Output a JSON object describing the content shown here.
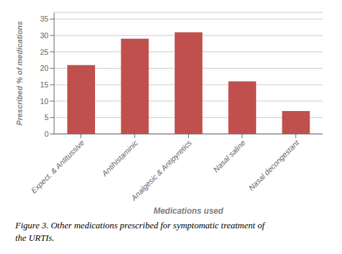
{
  "chart_data": {
    "type": "bar",
    "categories": [
      "Expect. & Antitussive",
      "Antihistaminic",
      "Analgesic & Antipyretics",
      "Nasal saline",
      "Nasal decongestant"
    ],
    "values": [
      21,
      29,
      31,
      16,
      7
    ],
    "color": "#c0504d",
    "xlabel": "Medications used",
    "ylabel": "Prescribed % of medications",
    "ylim": [
      0,
      37
    ],
    "yticks": [
      0,
      5,
      10,
      15,
      20,
      25,
      30,
      35
    ],
    "grid": true,
    "annotations": [
      "Figure 3. Other medications prescribed for symptomatic treatment of",
      "the URTIs."
    ]
  }
}
